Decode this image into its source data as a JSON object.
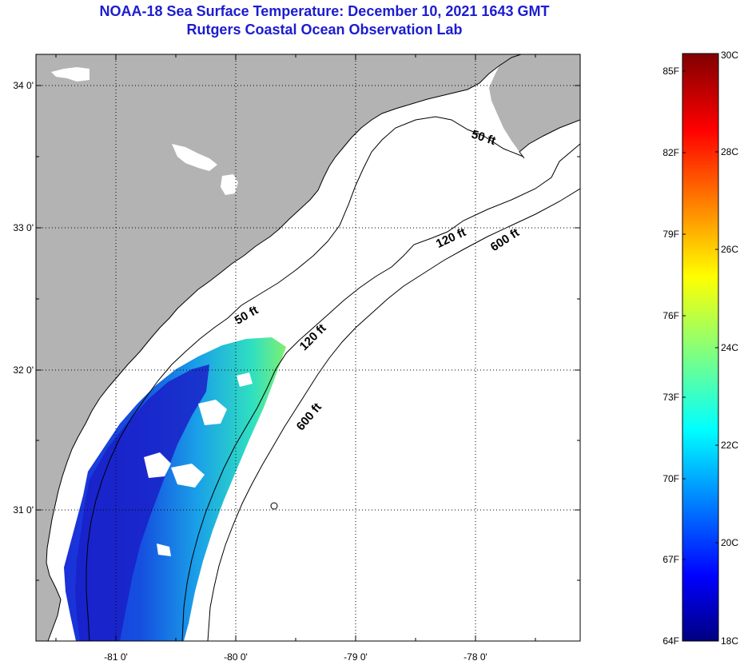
{
  "title": {
    "line1": "NOAA-18 Sea Surface Temperature:  December 10, 2021 1643 GMT",
    "line2": "Rutgers Coastal Ocean Observation Lab"
  },
  "map": {
    "lat_labels": [
      "34 0'",
      "33 0'",
      "32 0'",
      "31 0'"
    ],
    "lon_labels": [
      "-81 0'",
      "-80 0'",
      "-79 0'",
      "-78 0'"
    ],
    "contour_labels": [
      {
        "text": "50 ft"
      },
      {
        "text": "50 ft"
      },
      {
        "text": "120 ft"
      },
      {
        "text": "120 ft"
      },
      {
        "text": "600 ft"
      },
      {
        "text": "600 ft"
      }
    ],
    "colors": {
      "land": "#b3b3b3",
      "water": "#ffffff",
      "grid": "#000000"
    }
  },
  "colorbar": {
    "fahrenheit": [
      "85F",
      "82F",
      "79F",
      "76F",
      "73F",
      "70F",
      "67F",
      "64F"
    ],
    "celsius": [
      "30C",
      "28C",
      "26C",
      "24C",
      "22C",
      "20C",
      "18C"
    ],
    "min_c": 18,
    "max_c": 30
  }
}
